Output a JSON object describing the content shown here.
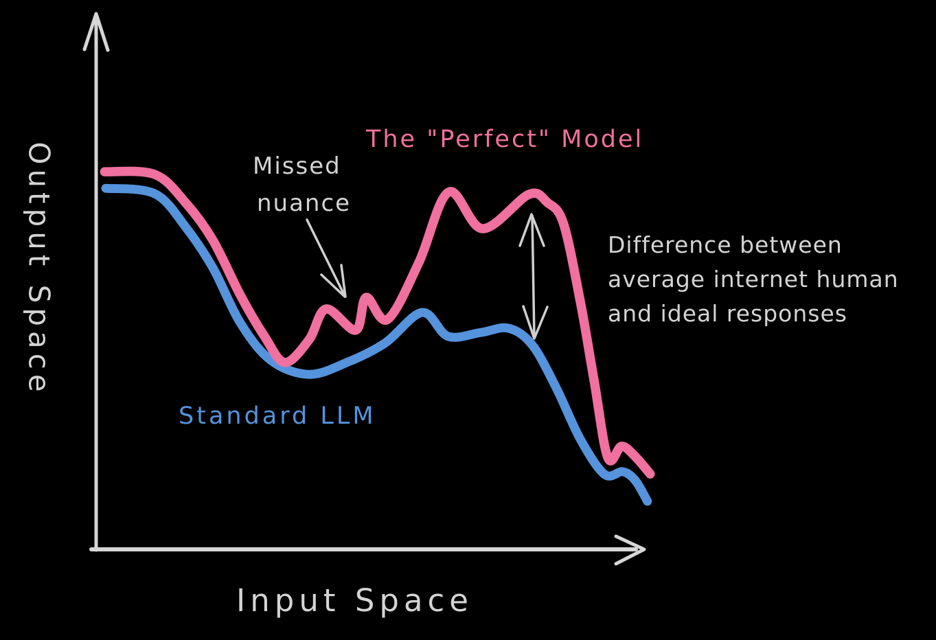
{
  "chart_data": {
    "type": "line",
    "title": "",
    "xlabel": "Input Space",
    "ylabel": "Output Space",
    "xlim": [
      0,
      100
    ],
    "ylim": [
      0,
      100
    ],
    "grid": false,
    "legend": "inline-curve-labels",
    "style": "hand-drawn sketch, black background",
    "series": [
      {
        "key": "perfect_model",
        "name": "The \"Perfect\" Model",
        "color": "#F0709F",
        "points": [
          [
            0.3,
            98.2
          ],
          [
            9.4,
            97.5
          ],
          [
            15.0,
            90.2
          ],
          [
            20.0,
            80.4
          ],
          [
            25.0,
            66.1
          ],
          [
            29.4,
            55.4
          ],
          [
            33.1,
            48.6
          ],
          [
            37.5,
            54.5
          ],
          [
            40.6,
            62.5
          ],
          [
            46.0,
            57.0
          ],
          [
            47.9,
            65.5
          ],
          [
            51.8,
            59.8
          ],
          [
            57.5,
            74.6
          ],
          [
            62.9,
            92.9
          ],
          [
            69.1,
            83.4
          ],
          [
            77.5,
            92.3
          ],
          [
            80.9,
            90.2
          ],
          [
            83.8,
            84.8
          ],
          [
            86.9,
            64.3
          ],
          [
            89.4,
            43.8
          ],
          [
            91.9,
            23.8
          ],
          [
            94.4,
            26.8
          ],
          [
            96.9,
            24.1
          ],
          [
            99.6,
            19.6
          ]
        ]
      },
      {
        "key": "standard_llm",
        "name": "Standard LLM",
        "color": "#5593DC",
        "points": [
          [
            0.5,
            93.9
          ],
          [
            9.4,
            92.5
          ],
          [
            15.0,
            83.9
          ],
          [
            20.0,
            73.2
          ],
          [
            25.0,
            58.9
          ],
          [
            30.6,
            49.1
          ],
          [
            37.5,
            45.5
          ],
          [
            44.4,
            48.6
          ],
          [
            51.3,
            53.6
          ],
          [
            58.1,
            61.6
          ],
          [
            62.8,
            55.4
          ],
          [
            68.8,
            56.4
          ],
          [
            73.8,
            57.5
          ],
          [
            78.1,
            53.2
          ],
          [
            82.5,
            42.0
          ],
          [
            86.9,
            28.6
          ],
          [
            91.3,
            19.5
          ],
          [
            94.6,
            20.2
          ],
          [
            96.9,
            17.9
          ],
          [
            99.1,
            12.5
          ]
        ]
      }
    ],
    "annotations": {
      "missed_nuance": {
        "line1": "Missed",
        "line2": "nuance"
      },
      "difference": {
        "line1": "Difference between",
        "line2": "average internet human",
        "line3": "and ideal responses"
      }
    }
  },
  "labels": {
    "perfect_model": "The \"Perfect\" Model",
    "standard_llm": "Standard LLM",
    "x_axis": "Input Space",
    "y_axis": "Output Space"
  },
  "colors": {
    "background": "#000000",
    "pink": "#F0709F",
    "blue": "#5593DC",
    "text": "#D4D4D4",
    "axis": "#D6D6D6",
    "arrow": "#CFCFCF"
  }
}
